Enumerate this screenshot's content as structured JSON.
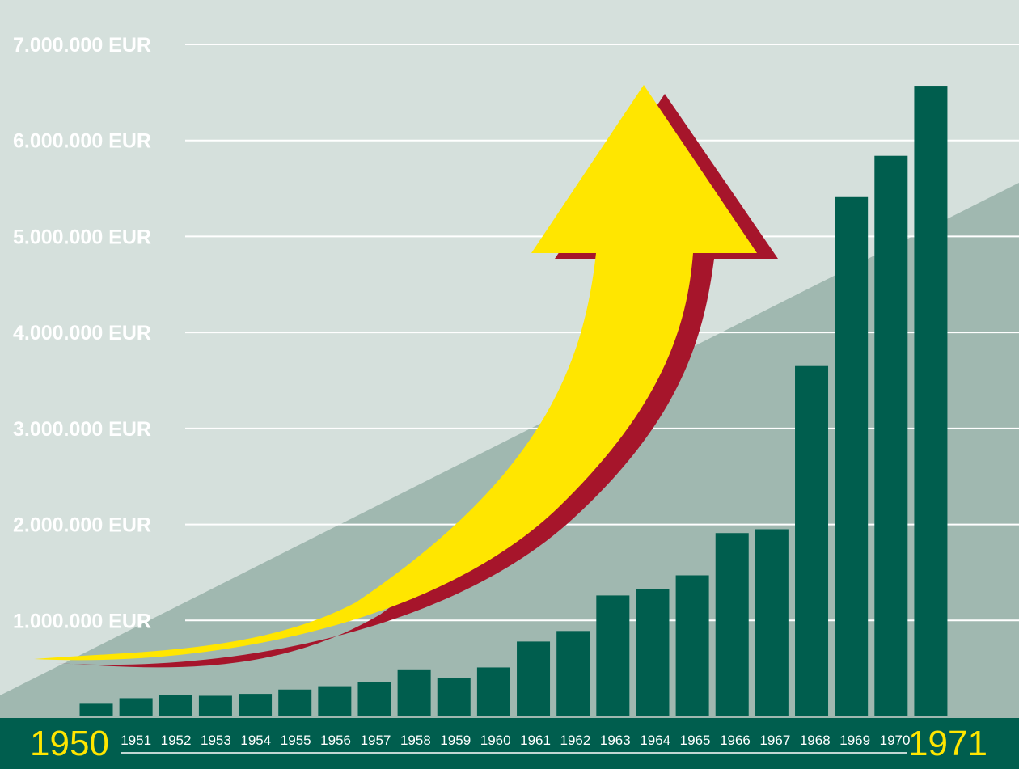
{
  "chart_data": {
    "type": "bar",
    "title": "",
    "xlabel": "",
    "ylabel": "",
    "ylim": [
      0,
      7000000
    ],
    "y_ticks": [
      "1.000.000 EUR",
      "2.000.000 EUR",
      "3.000.000 EUR",
      "4.000.000 EUR",
      "5.000.000 EUR",
      "6.000.000 EUR",
      "7.000.000 EUR"
    ],
    "y_tick_values": [
      1000000,
      2000000,
      3000000,
      4000000,
      5000000,
      6000000,
      7000000
    ],
    "categories": [
      "1950",
      "1951",
      "1952",
      "1953",
      "1954",
      "1955",
      "1956",
      "1957",
      "1958",
      "1959",
      "1960",
      "1961",
      "1962",
      "1963",
      "1964",
      "1965",
      "1966",
      "1967",
      "1968",
      "1969",
      "1970",
      "1971"
    ],
    "values": [
      140000,
      190000,
      225000,
      215000,
      235000,
      280000,
      315000,
      360000,
      490000,
      400000,
      510000,
      780000,
      890000,
      1260000,
      1330000,
      1470000,
      1910000,
      1950000,
      3650000,
      5410000,
      5840000,
      6570000
    ],
    "highlight_categories": [
      "1950",
      "1971"
    ],
    "grid": true,
    "colors": {
      "background": "#d5e0dc",
      "trend_area": "#a0b8b0",
      "bars": "#005e4e",
      "axis_band": "#005e4e",
      "gridlines": "#ffffff",
      "arrow": "#ffe600",
      "arrow_shadow": "#a6152b",
      "highlight_labels": "#ffe600"
    },
    "decorations": [
      "rising-trend-area",
      "curved-growth-arrow"
    ]
  }
}
